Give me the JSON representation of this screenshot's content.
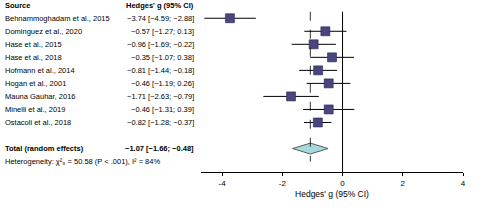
{
  "chart_data": {
    "type": "forest",
    "columns": [
      "Source",
      "Hedges' g (95% CI)"
    ],
    "studies": [
      {
        "name": "Behnammoghadam et al., 2015",
        "value": -3.74,
        "lower": -4.59,
        "upper": -2.88,
        "value_label": "−3.74 [−4.59; −2.88]"
      },
      {
        "name": "Dominguez et al., 2020",
        "value": -0.57,
        "lower": -1.27,
        "upper": 0.13,
        "value_label": "−0.57 [−1.27; 0.13]"
      },
      {
        "name": "Hase et al., 2015",
        "value": -0.96,
        "lower": -1.69,
        "upper": -0.22,
        "value_label": "−0.96 [−1.69; −0.22]"
      },
      {
        "name": "Hase et al., 2018",
        "value": -0.35,
        "lower": -1.07,
        "upper": 0.38,
        "value_label": "−0.35 [−1.07; 0.38]"
      },
      {
        "name": "Hofmann et al., 2014",
        "value": -0.81,
        "lower": -1.44,
        "upper": -0.18,
        "value_label": "−0.81 [−1.44; −0.18]"
      },
      {
        "name": "Hogan et al., 2001",
        "value": -0.46,
        "lower": -1.19,
        "upper": 0.26,
        "value_label": "−0.46 [−1.19; 0.26]"
      },
      {
        "name": "Mauna Gauhar, 2016",
        "value": -1.71,
        "lower": -2.63,
        "upper": -0.79,
        "value_label": "−1.71 [−2.63; −0.79]"
      },
      {
        "name": "Minelli et al., 2019",
        "value": -0.46,
        "lower": -1.31,
        "upper": 0.39,
        "value_label": "−0.46 [−1.31; 0.39]"
      },
      {
        "name": "Ostacoli et al., 2018",
        "value": -0.82,
        "lower": -1.28,
        "upper": -0.37,
        "value_label": "−0.82 [−1.28; −0.37]"
      }
    ],
    "total": {
      "name": "Total (random effects)",
      "value": -1.07,
      "lower": -1.66,
      "upper": -0.48,
      "value_label": "−1.07 [−1.66; −0.48]"
    },
    "heterogeneity": "Heterogeneity: χ²₈ = 50.58 (P < .001), I² = 84%",
    "x_label": "Hedges' g (95% CI)",
    "xlim": [
      -4.7,
      4
    ],
    "xticks": [
      -4,
      -2,
      0,
      2,
      4
    ],
    "null_line": 0,
    "color": "#48457f",
    "total_color": "#a8d8dc"
  }
}
